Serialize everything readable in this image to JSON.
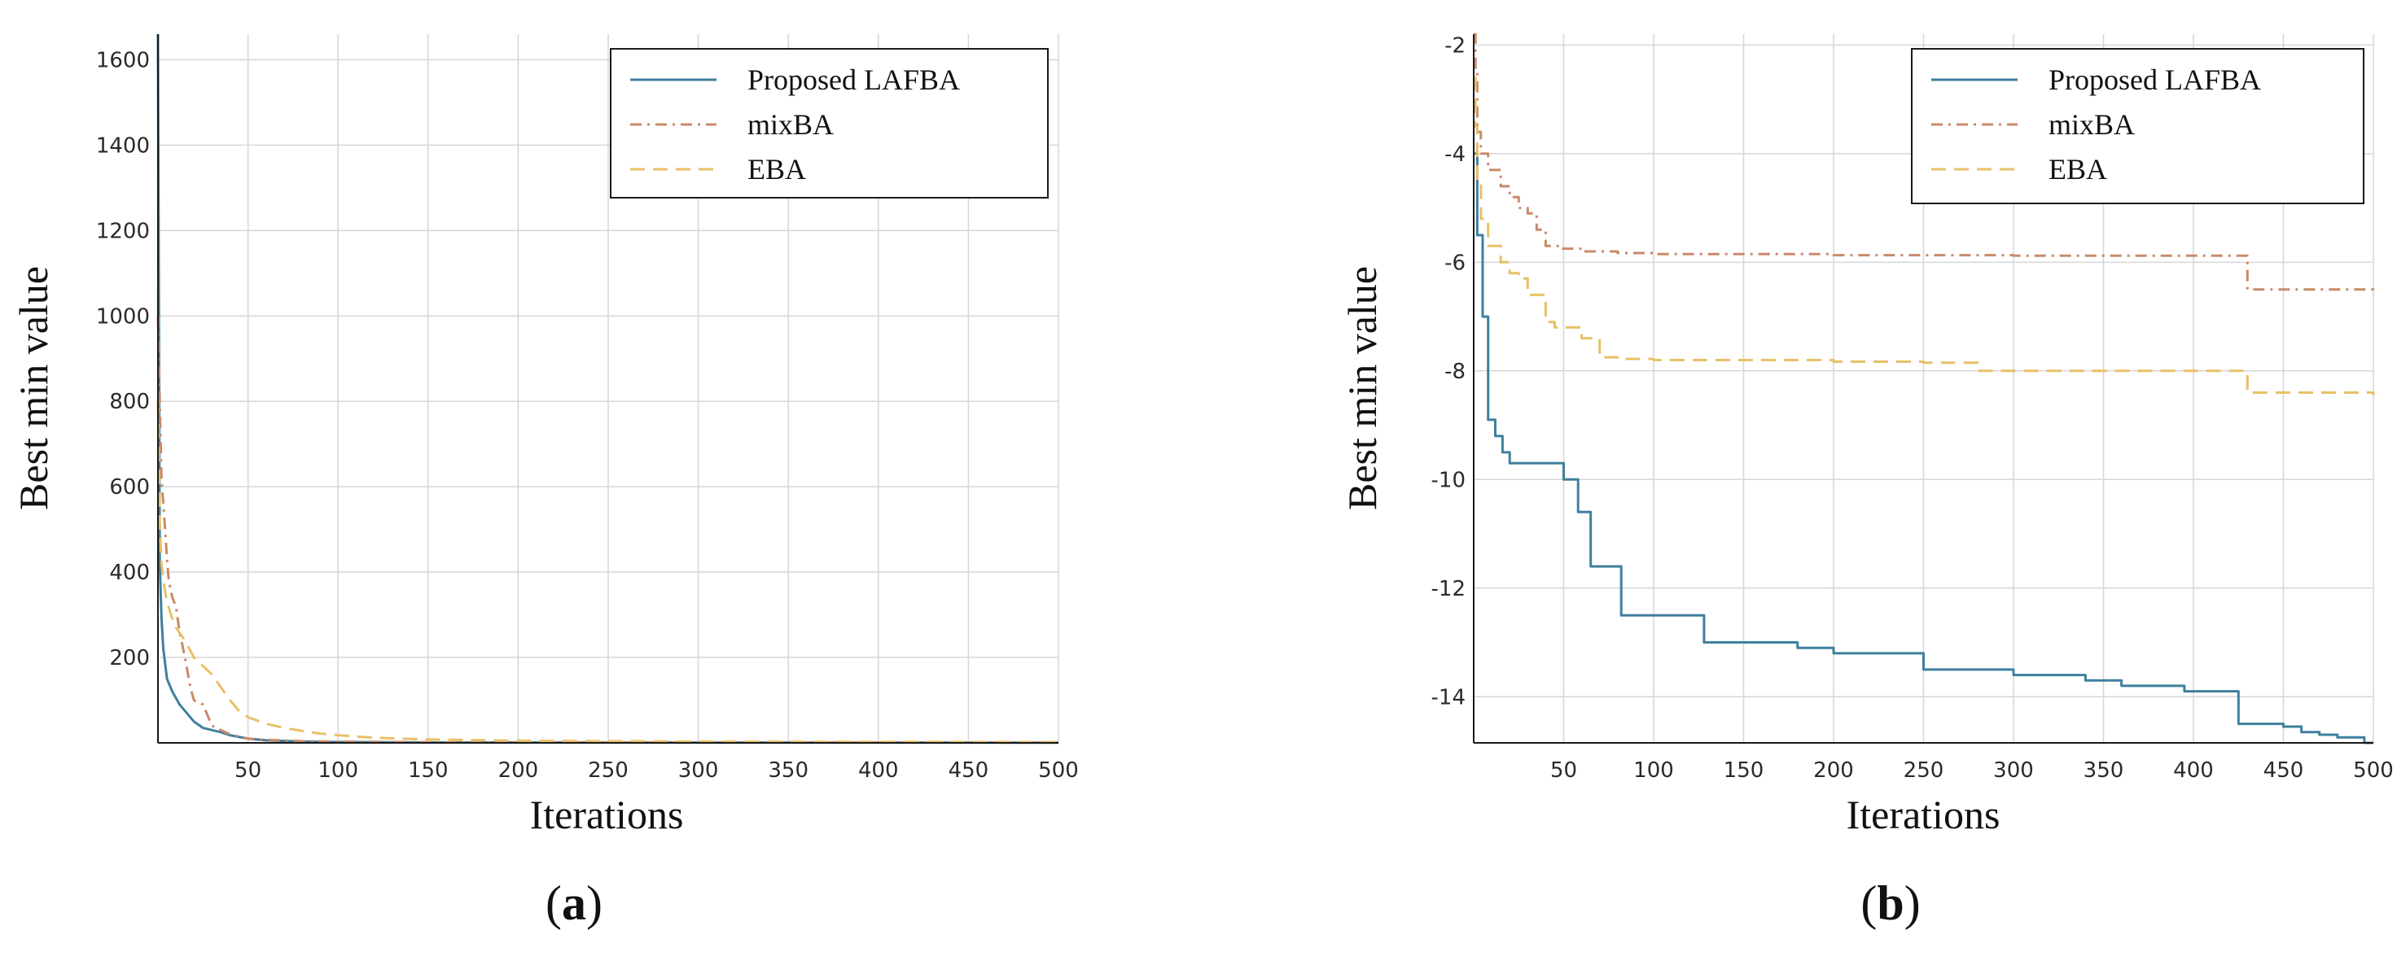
{
  "chart_data": [
    {
      "type": "line",
      "panel": "a",
      "panel_label": "(a)",
      "xlabel": "Iterations",
      "ylabel": "Best min value",
      "xlim": [
        0,
        500
      ],
      "ylim": [
        0,
        1660
      ],
      "xticks": [
        50,
        100,
        150,
        200,
        250,
        300,
        350,
        400,
        450,
        500
      ],
      "yticks": [
        200,
        400,
        600,
        800,
        1000,
        1200,
        1400,
        1600
      ],
      "grid": true,
      "legend_position": "top-right",
      "series": [
        {
          "name": "Proposed LAFBA",
          "color": "#3f7f9e",
          "style": "solid",
          "x": [
            0,
            1,
            2,
            3,
            5,
            8,
            12,
            16,
            20,
            25,
            30,
            35,
            40,
            50,
            60,
            80,
            100,
            150,
            500
          ],
          "y": [
            1660,
            420,
            290,
            220,
            150,
            120,
            90,
            70,
            50,
            35,
            30,
            25,
            18,
            10,
            6,
            3,
            2,
            1,
            0.5
          ]
        },
        {
          "name": "mixBA",
          "color": "#c98a6a",
          "style": "dashdot",
          "x": [
            0,
            1,
            2,
            3,
            4,
            5,
            6,
            8,
            10,
            12,
            15,
            18,
            20,
            22,
            25,
            28,
            30,
            35,
            40,
            45,
            50,
            60,
            80,
            100,
            150,
            500
          ],
          "y": [
            1000,
            800,
            620,
            560,
            500,
            430,
            380,
            340,
            320,
            260,
            200,
            130,
            100,
            95,
            90,
            60,
            40,
            30,
            20,
            15,
            10,
            7,
            4,
            3,
            1.5,
            0.7
          ]
        },
        {
          "name": "EBA",
          "color": "#e8c068",
          "style": "dashed",
          "x": [
            0,
            1,
            2,
            3,
            5,
            8,
            10,
            15,
            20,
            25,
            30,
            35,
            40,
            45,
            50,
            60,
            70,
            80,
            90,
            100,
            120,
            150,
            200,
            300,
            500
          ],
          "y": [
            800,
            520,
            420,
            380,
            330,
            290,
            270,
            240,
            200,
            180,
            160,
            130,
            100,
            75,
            60,
            45,
            35,
            28,
            22,
            18,
            12,
            8,
            5,
            3,
            2
          ]
        }
      ]
    },
    {
      "type": "line",
      "panel": "b",
      "panel_label": "(b)",
      "xlabel": "Iterations",
      "ylabel": "Best min value",
      "xlim": [
        0,
        500
      ],
      "ylim": [
        -14.85,
        -1.8
      ],
      "xticks": [
        50,
        100,
        150,
        200,
        250,
        300,
        350,
        400,
        450,
        500
      ],
      "yticks": [
        -2,
        -4,
        -6,
        -8,
        -10,
        -12,
        -14
      ],
      "grid": true,
      "legend_position": "top-right",
      "series": [
        {
          "name": "Proposed LAFBA",
          "color": "#3f7f9e",
          "style": "solid",
          "step": true,
          "x": [
            0,
            2,
            5,
            8,
            12,
            16,
            20,
            25,
            30,
            45,
            50,
            58,
            65,
            75,
            82,
            110,
            128,
            140,
            160,
            180,
            200,
            220,
            250,
            270,
            300,
            320,
            340,
            360,
            380,
            395,
            415,
            425,
            435,
            450,
            460,
            470,
            480,
            495,
            500
          ],
          "y": [
            -4.0,
            -5.5,
            -7.0,
            -8.9,
            -9.2,
            -9.5,
            -9.7,
            -9.7,
            -9.7,
            -9.7,
            -10.0,
            -10.6,
            -11.6,
            -11.6,
            -12.5,
            -12.5,
            -13.0,
            -13.0,
            -13.0,
            -13.1,
            -13.2,
            -13.2,
            -13.5,
            -13.5,
            -13.6,
            -13.6,
            -13.7,
            -13.8,
            -13.8,
            -13.9,
            -13.9,
            -14.5,
            -14.5,
            -14.55,
            -14.65,
            -14.7,
            -14.75,
            -14.85,
            -14.85
          ]
        },
        {
          "name": "mixBA",
          "color": "#c98a6a",
          "style": "dashdot",
          "step": true,
          "x": [
            0,
            1,
            2,
            4,
            8,
            15,
            20,
            25,
            30,
            35,
            40,
            48,
            60,
            80,
            100,
            200,
            300,
            428,
            430,
            500
          ],
          "y": [
            -1.8,
            -2.5,
            -3.6,
            -4.0,
            -4.3,
            -4.6,
            -4.8,
            -5.0,
            -5.1,
            -5.4,
            -5.7,
            -5.75,
            -5.8,
            -5.83,
            -5.85,
            -5.87,
            -5.88,
            -5.88,
            -6.5,
            -6.55
          ]
        },
        {
          "name": "EBA",
          "color": "#e8c068",
          "style": "dashed",
          "step": true,
          "x": [
            0,
            1,
            2,
            4,
            8,
            15,
            20,
            25,
            30,
            40,
            45,
            60,
            70,
            80,
            100,
            200,
            250,
            280,
            428,
            430,
            500
          ],
          "y": [
            -2.6,
            -3.5,
            -4.5,
            -5.2,
            -5.7,
            -6.0,
            -6.2,
            -6.3,
            -6.6,
            -7.1,
            -7.2,
            -7.4,
            -7.75,
            -7.78,
            -7.8,
            -7.83,
            -7.85,
            -8.0,
            -8.0,
            -8.4,
            -8.45
          ]
        }
      ]
    }
  ]
}
